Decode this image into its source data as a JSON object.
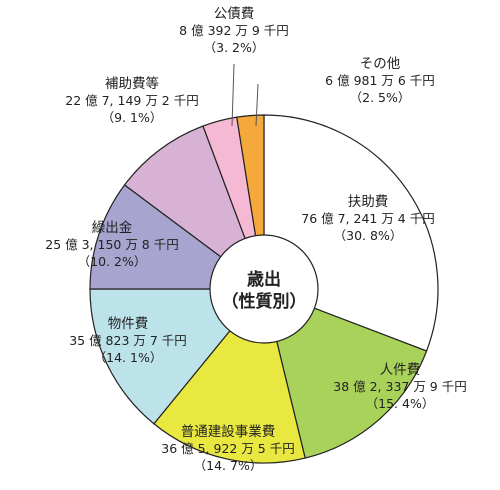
{
  "chart_data": {
    "type": "pie",
    "center_label": [
      "歳出",
      "（性質別）"
    ],
    "colors": {
      "stroke": "#222222",
      "center_fill": "#ffffff",
      "leader_line": "#555555"
    },
    "slices": [
      {
        "name": "扶助費",
        "amount": "76 億 7, 241 万 4 千円",
        "percent_label": "（30. 8%）",
        "value": 30.8,
        "color": "#ffffff"
      },
      {
        "name": "人件費",
        "amount": "38 億 2, 337 万 9 千円",
        "percent_label": "（15. 4%）",
        "value": 15.4,
        "color": "#a9d25b"
      },
      {
        "name": "普通建設事業費",
        "amount": "36 億 5, 922 万 5 千円",
        "percent_label": "（14. 7%）",
        "value": 14.7,
        "color": "#e8e840"
      },
      {
        "name": "物件費",
        "amount": "35 億 823 万 7 千円",
        "percent_label": "（14. 1%）",
        "value": 14.1,
        "color": "#bde3ea"
      },
      {
        "name": "繰出金",
        "amount": "25 億 3, 150 万 8 千円",
        "percent_label": "（10. 2%）",
        "value": 10.2,
        "color": "#a7a5cf"
      },
      {
        "name": "補助費等",
        "amount": "22 億 7, 149 万 2 千円",
        "percent_label": "（9. 1%）",
        "value": 9.1,
        "color": "#d7b2d4"
      },
      {
        "name": "公債費",
        "amount": "8 億 392 万 9 千円",
        "percent_label": "（3. 2%）",
        "value": 3.2,
        "color": "#f6b9d3"
      },
      {
        "name": "その他",
        "amount": "6 億 981 万 6 千円",
        "percent_label": "（2. 5%）",
        "value": 2.5,
        "color": "#f5a93a"
      }
    ]
  }
}
